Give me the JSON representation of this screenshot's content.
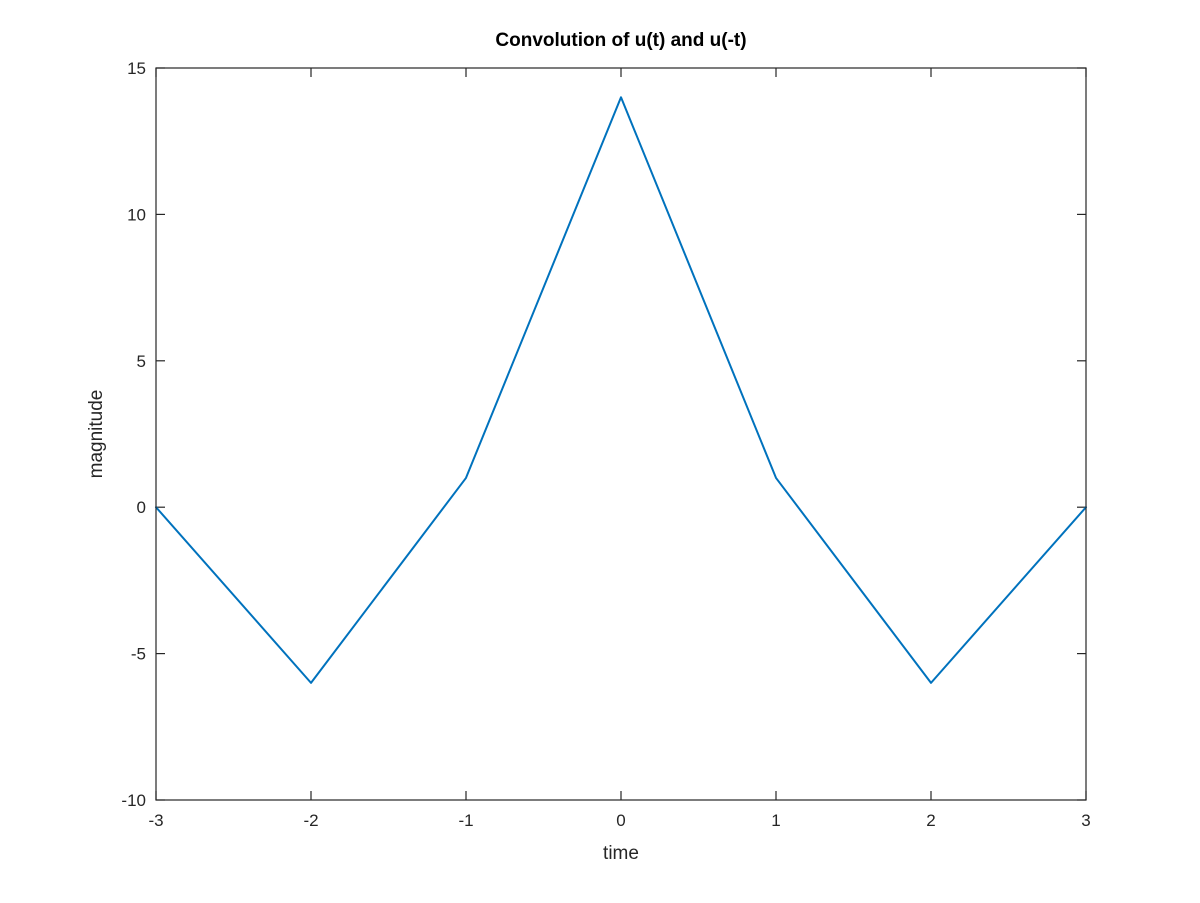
{
  "chart_data": {
    "type": "line",
    "title": "Convolution of u(t) and u(-t)",
    "xlabel": "time",
    "ylabel": "magnitude",
    "xlim": [
      -3,
      3
    ],
    "ylim": [
      -10,
      15
    ],
    "x_ticks": [
      -3,
      -2,
      -1,
      0,
      1,
      2,
      3
    ],
    "x_tick_labels": [
      "-3",
      "-2",
      "-1",
      "0",
      "1",
      "2",
      "3"
    ],
    "y_ticks": [
      -10,
      -5,
      0,
      5,
      10,
      15
    ],
    "y_tick_labels": [
      "-10",
      "-5",
      "0",
      "5",
      "10",
      "15"
    ],
    "grid": false,
    "legend": "none",
    "series": [
      {
        "color": "#0072BD",
        "x": [
          -3,
          -2,
          -1,
          0,
          1,
          2,
          3
        ],
        "y": [
          0,
          -6,
          1,
          14,
          1,
          -6,
          0
        ]
      }
    ]
  }
}
